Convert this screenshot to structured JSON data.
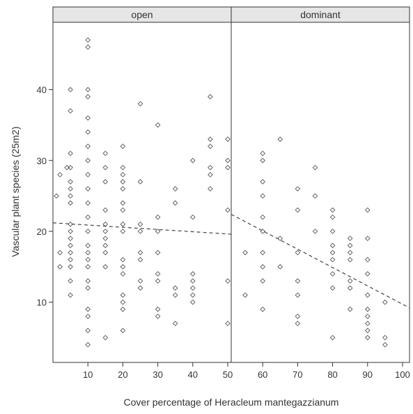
{
  "chart_data": {
    "type": "scatter",
    "xlabel": "Cover percentage of Heracleum mantegazzianum",
    "ylabel": "Vascular plant species (25m2)",
    "grid": false,
    "y_ticks": [
      "10",
      "20",
      "30",
      "40"
    ],
    "panels": [
      {
        "name": "open",
        "xlim": [
          0,
          51
        ],
        "ylim": [
          1.5,
          49.5
        ],
        "x_ticks": [
          "10",
          "20",
          "30",
          "40",
          "50"
        ],
        "trend": {
          "x": [
            0,
            51
          ],
          "y": [
            21.2,
            19.6
          ],
          "style": "dashed"
        },
        "points": [
          [
            1,
            25
          ],
          [
            2,
            28
          ],
          [
            2,
            17
          ],
          [
            2,
            15
          ],
          [
            4,
            29
          ],
          [
            5,
            40
          ],
          [
            5,
            37
          ],
          [
            5,
            31
          ],
          [
            5,
            29
          ],
          [
            5,
            27
          ],
          [
            5,
            26
          ],
          [
            5,
            25
          ],
          [
            5,
            24
          ],
          [
            5,
            21
          ],
          [
            5,
            20
          ],
          [
            5,
            19
          ],
          [
            5,
            18
          ],
          [
            5,
            17
          ],
          [
            5,
            16
          ],
          [
            5,
            15
          ],
          [
            5,
            13
          ],
          [
            5,
            11
          ],
          [
            10,
            47
          ],
          [
            10,
            46
          ],
          [
            10,
            40
          ],
          [
            10,
            39
          ],
          [
            10,
            36
          ],
          [
            10,
            34
          ],
          [
            10,
            32
          ],
          [
            10,
            30
          ],
          [
            10,
            28
          ],
          [
            10,
            26
          ],
          [
            10,
            24
          ],
          [
            10,
            22
          ],
          [
            10,
            20
          ],
          [
            10,
            18
          ],
          [
            10,
            17
          ],
          [
            10,
            16
          ],
          [
            10,
            15
          ],
          [
            10,
            13
          ],
          [
            10,
            12
          ],
          [
            10,
            9
          ],
          [
            10,
            8
          ],
          [
            10,
            6
          ],
          [
            10,
            4
          ],
          [
            15,
            31
          ],
          [
            15,
            29
          ],
          [
            15,
            27
          ],
          [
            15,
            23
          ],
          [
            15,
            21
          ],
          [
            15,
            20
          ],
          [
            15,
            19
          ],
          [
            15,
            18
          ],
          [
            15,
            17
          ],
          [
            15,
            15
          ],
          [
            15,
            5
          ],
          [
            20,
            32
          ],
          [
            20,
            29
          ],
          [
            20,
            28
          ],
          [
            20,
            27
          ],
          [
            20,
            26
          ],
          [
            20,
            24
          ],
          [
            20,
            23
          ],
          [
            20,
            21
          ],
          [
            20,
            20
          ],
          [
            20,
            16
          ],
          [
            20,
            15
          ],
          [
            20,
            14
          ],
          [
            20,
            11
          ],
          [
            20,
            10
          ],
          [
            20,
            9
          ],
          [
            20,
            6
          ],
          [
            25,
            38
          ],
          [
            25,
            27
          ],
          [
            25,
            21
          ],
          [
            25,
            20
          ],
          [
            25,
            17
          ],
          [
            25,
            16
          ],
          [
            25,
            13
          ],
          [
            25,
            12
          ],
          [
            30,
            35
          ],
          [
            30,
            22
          ],
          [
            30,
            20
          ],
          [
            30,
            17
          ],
          [
            30,
            14
          ],
          [
            30,
            13
          ],
          [
            30,
            9
          ],
          [
            30,
            8
          ],
          [
            35,
            26
          ],
          [
            35,
            24
          ],
          [
            35,
            12
          ],
          [
            35,
            11
          ],
          [
            35,
            7
          ],
          [
            40,
            30
          ],
          [
            40,
            22
          ],
          [
            40,
            14
          ],
          [
            40,
            13
          ],
          [
            40,
            12
          ],
          [
            40,
            11
          ],
          [
            40,
            10
          ],
          [
            45,
            39
          ],
          [
            45,
            33
          ],
          [
            45,
            32
          ],
          [
            45,
            29
          ],
          [
            45,
            28
          ],
          [
            45,
            26
          ],
          [
            50,
            33
          ],
          [
            50,
            30
          ],
          [
            50,
            29
          ],
          [
            50,
            23
          ],
          [
            50,
            13
          ],
          [
            50,
            7
          ]
        ]
      },
      {
        "name": "dominant",
        "xlim": [
          51,
          102
        ],
        "ylim": [
          1.5,
          49.5
        ],
        "x_ticks": [
          "60",
          "70",
          "80",
          "90",
          "100"
        ],
        "trend": {
          "x": [
            51,
            102
          ],
          "y": [
            22.4,
            9.2
          ],
          "style": "dashed"
        },
        "points": [
          [
            55,
            17
          ],
          [
            55,
            11
          ],
          [
            60,
            31
          ],
          [
            60,
            30
          ],
          [
            60,
            27
          ],
          [
            60,
            25
          ],
          [
            60,
            22
          ],
          [
            60,
            20
          ],
          [
            60,
            17
          ],
          [
            60,
            15
          ],
          [
            60,
            13
          ],
          [
            60,
            9
          ],
          [
            65,
            33
          ],
          [
            65,
            19
          ],
          [
            65,
            15
          ],
          [
            70,
            26
          ],
          [
            70,
            23
          ],
          [
            70,
            17
          ],
          [
            70,
            13
          ],
          [
            70,
            11
          ],
          [
            70,
            8
          ],
          [
            70,
            7
          ],
          [
            75,
            29
          ],
          [
            75,
            25
          ],
          [
            75,
            20
          ],
          [
            80,
            23
          ],
          [
            80,
            22
          ],
          [
            80,
            20
          ],
          [
            80,
            18
          ],
          [
            80,
            17
          ],
          [
            80,
            16
          ],
          [
            80,
            14
          ],
          [
            80,
            12
          ],
          [
            80,
            5
          ],
          [
            85,
            19
          ],
          [
            85,
            18
          ],
          [
            85,
            17
          ],
          [
            85,
            16
          ],
          [
            85,
            13
          ],
          [
            85,
            12
          ],
          [
            85,
            9
          ],
          [
            90,
            23
          ],
          [
            90,
            19
          ],
          [
            90,
            16
          ],
          [
            90,
            14
          ],
          [
            90,
            11
          ],
          [
            90,
            9
          ],
          [
            90,
            8
          ],
          [
            90,
            7
          ],
          [
            90,
            6
          ],
          [
            90,
            5
          ],
          [
            95,
            10
          ],
          [
            95,
            5
          ],
          [
            95,
            4
          ]
        ]
      }
    ]
  }
}
